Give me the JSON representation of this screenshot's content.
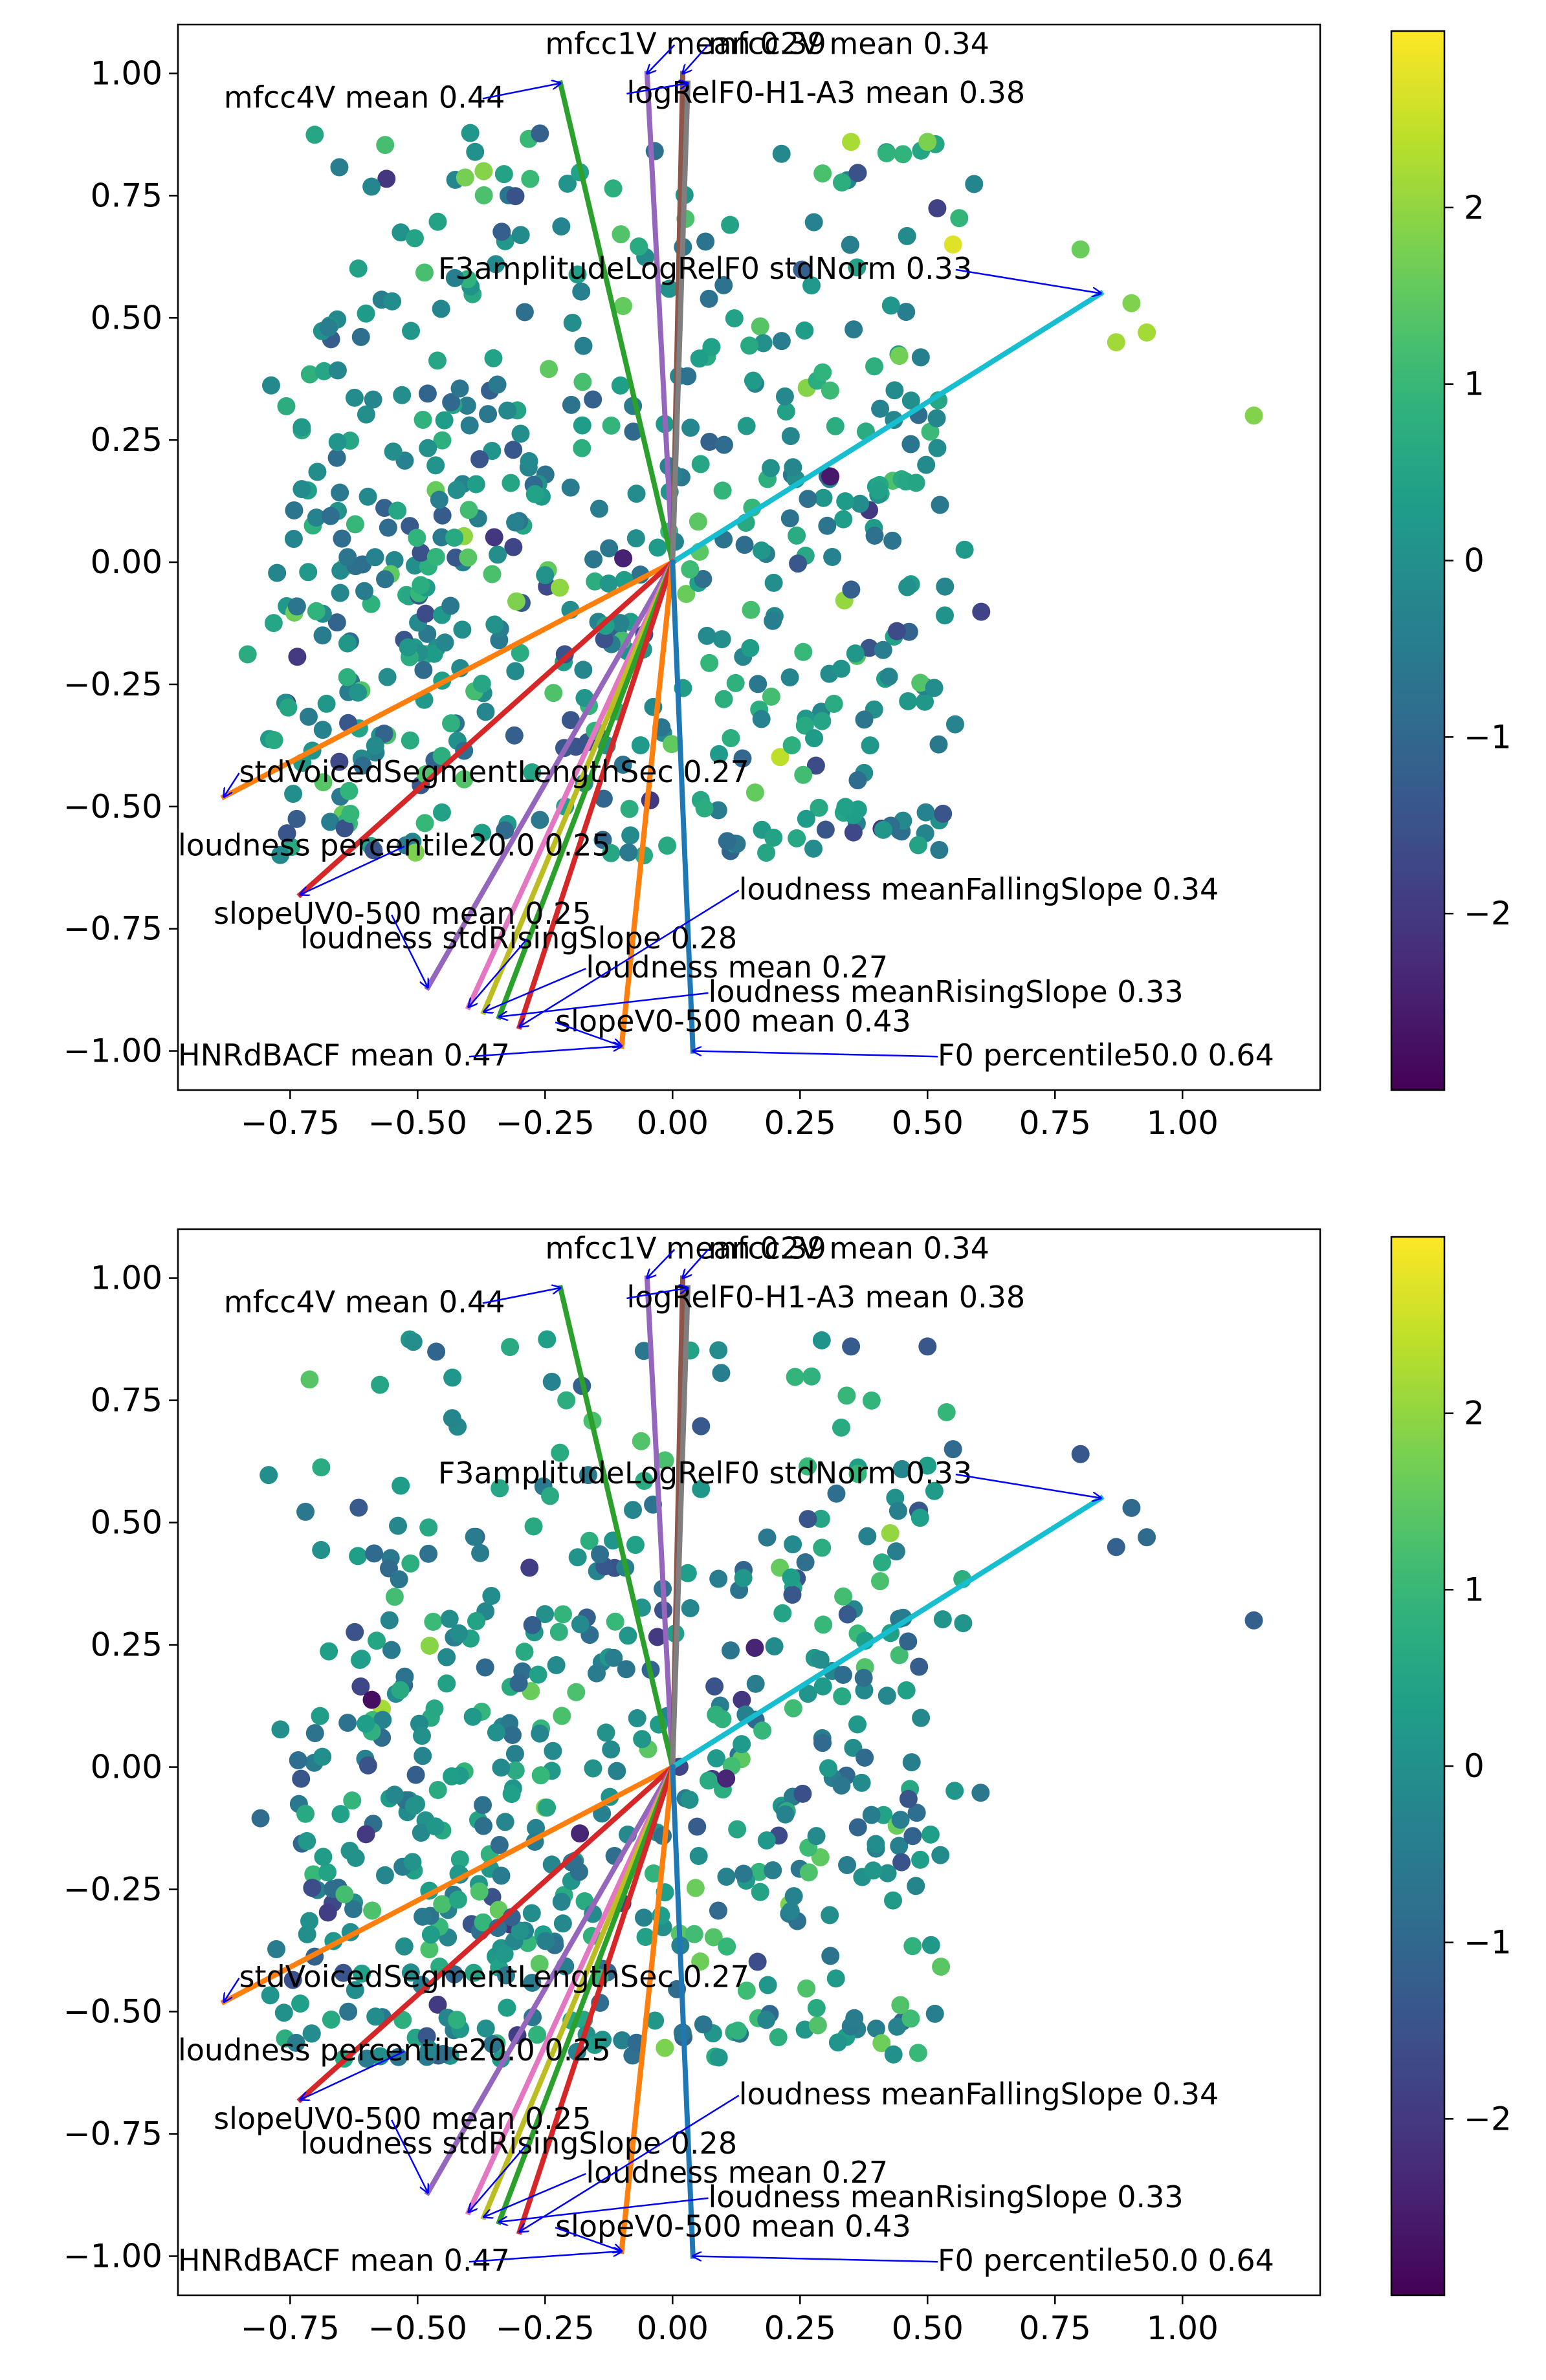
{
  "chart_data": [
    {
      "type": "scatter",
      "title": "",
      "xlabel": "",
      "ylabel": "",
      "xlim": [
        -0.97,
        1.27
      ],
      "ylim": [
        -1.08,
        1.1
      ],
      "xticks": [
        -0.75,
        -0.5,
        -0.25,
        0.0,
        0.25,
        0.5,
        0.75,
        1.0
      ],
      "xtick_labels": [
        "−0.75",
        "−0.50",
        "−0.25",
        "0.00",
        "0.25",
        "0.50",
        "0.75",
        "1.00"
      ],
      "yticks": [
        1.0,
        0.75,
        0.5,
        0.25,
        0.0,
        -0.25,
        -0.5,
        -0.75,
        -1.0
      ],
      "ytick_labels": [
        "1.00",
        "0.75",
        "0.50",
        "0.25",
        "0.00",
        "−0.25",
        "−0.50",
        "−0.75",
        "−1.00"
      ],
      "colorbar": {
        "range": [
          -3,
          3
        ],
        "ticks": [
          2,
          1,
          0,
          -1,
          -2
        ],
        "tick_labels": [
          "2",
          "1",
          "0",
          "−1",
          "−2"
        ],
        "colormap": "viridis"
      },
      "grid": false,
      "seed": 17,
      "loadings": [
        {
          "name": "mfcc1V mean 0.39",
          "x": -0.05,
          "y": 1.0,
          "color": "#9467bd",
          "lx": -0.25,
          "ly": 1.04
        },
        {
          "name": "mfcc2V mean 0.34",
          "x": 0.02,
          "y": 1.0,
          "color": "#8c564b",
          "lx": 0.07,
          "ly": 1.04
        },
        {
          "name": "mfcc4V mean 0.44",
          "x": -0.22,
          "y": 0.98,
          "color": "#2ca02c",
          "lx": -0.88,
          "ly": 0.93
        },
        {
          "name": "logRelF0-H1-A3 mean 0.38",
          "x": 0.03,
          "y": 0.98,
          "color": "#7f7f7f",
          "lx": -0.09,
          "ly": 0.94
        },
        {
          "name": "F3amplitudeLogRelF0 stdNorm 0.33",
          "x": 0.84,
          "y": 0.55,
          "color": "#17becf",
          "lx": -0.46,
          "ly": 0.58
        },
        {
          "name": "stdVoicedSegmentLengthSec 0.27",
          "x": -0.88,
          "y": -0.48,
          "color": "#ff7f0e",
          "lx": -0.85,
          "ly": -0.45
        },
        {
          "name": "loudness percentile20.0 0.25",
          "x": -0.73,
          "y": -0.68,
          "color": "#d62728",
          "lx": -0.97,
          "ly": -0.6
        },
        {
          "name": "slopeUV0-500 mean 0.25",
          "x": -0.48,
          "y": -0.87,
          "color": "#9467bd",
          "lx": -0.9,
          "ly": -0.74
        },
        {
          "name": "loudness stdRisingSlope 0.28",
          "x": -0.4,
          "y": -0.91,
          "color": "#e377c2",
          "lx": -0.73,
          "ly": -0.79
        },
        {
          "name": "loudness mean 0.27",
          "x": -0.37,
          "y": -0.92,
          "color": "#bcbd22",
          "lx": -0.17,
          "ly": -0.85
        },
        {
          "name": "loudness meanRisingSlope 0.33",
          "x": -0.34,
          "y": -0.93,
          "color": "#2ca02c",
          "lx": 0.07,
          "ly": -0.9
        },
        {
          "name": "loudness meanFallingSlope 0.34",
          "x": -0.3,
          "y": -0.95,
          "color": "#d62728",
          "lx": 0.13,
          "ly": -0.69
        },
        {
          "name": "slopeV0-500 mean 0.43",
          "x": -0.1,
          "y": -0.99,
          "color": "#ff7f0e",
          "lx": -0.23,
          "ly": -0.96
        },
        {
          "name": "HNRdBACF mean 0.47",
          "x": -0.1,
          "y": -0.99,
          "color": "#ff7f0e",
          "lx": -0.97,
          "ly": -1.03
        },
        {
          "name": "F0 percentile50.0 0.64",
          "x": 0.04,
          "y": -1.0,
          "color": "#1f77b4",
          "lx": 0.52,
          "ly": -1.03
        }
      ]
    },
    {
      "type": "scatter",
      "title": "",
      "xlabel": "",
      "ylabel": "",
      "xlim": [
        -0.97,
        1.27
      ],
      "ylim": [
        -1.08,
        1.1
      ],
      "xticks": [
        -0.75,
        -0.5,
        -0.25,
        0.0,
        0.25,
        0.5,
        0.75,
        1.0
      ],
      "xtick_labels": [
        "−0.75",
        "−0.50",
        "−0.25",
        "0.00",
        "0.25",
        "0.50",
        "0.75",
        "1.00"
      ],
      "yticks": [
        1.0,
        0.75,
        0.5,
        0.25,
        0.0,
        -0.25,
        -0.5,
        -0.75,
        -1.0
      ],
      "ytick_labels": [
        "1.00",
        "0.75",
        "0.50",
        "0.25",
        "0.00",
        "−0.25",
        "−0.50",
        "−0.75",
        "−1.00"
      ],
      "colorbar": {
        "range": [
          -3,
          3
        ],
        "ticks": [
          2,
          1,
          0,
          -1,
          -2
        ],
        "tick_labels": [
          "2",
          "1",
          "0",
          "−1",
          "−2"
        ],
        "colormap": "viridis"
      },
      "grid": false,
      "seed": 53,
      "loadings": [
        {
          "name": "mfcc1V mean 0.39",
          "x": -0.05,
          "y": 1.0,
          "color": "#9467bd",
          "lx": -0.25,
          "ly": 1.04
        },
        {
          "name": "mfcc2V mean 0.34",
          "x": 0.02,
          "y": 1.0,
          "color": "#8c564b",
          "lx": 0.07,
          "ly": 1.04
        },
        {
          "name": "mfcc4V mean 0.44",
          "x": -0.22,
          "y": 0.98,
          "color": "#2ca02c",
          "lx": -0.88,
          "ly": 0.93
        },
        {
          "name": "logRelF0-H1-A3 mean 0.38",
          "x": 0.03,
          "y": 0.98,
          "color": "#7f7f7f",
          "lx": -0.09,
          "ly": 0.94
        },
        {
          "name": "F3amplitudeLogRelF0 stdNorm 0.33",
          "x": 0.84,
          "y": 0.55,
          "color": "#17becf",
          "lx": -0.46,
          "ly": 0.58
        },
        {
          "name": "stdVoicedSegmentLengthSec 0.27",
          "x": -0.88,
          "y": -0.48,
          "color": "#ff7f0e",
          "lx": -0.85,
          "ly": -0.45
        },
        {
          "name": "loudness percentile20.0 0.25",
          "x": -0.73,
          "y": -0.68,
          "color": "#d62728",
          "lx": -0.97,
          "ly": -0.6
        },
        {
          "name": "slopeUV0-500 mean 0.25",
          "x": -0.48,
          "y": -0.87,
          "color": "#9467bd",
          "lx": -0.9,
          "ly": -0.74
        },
        {
          "name": "loudness stdRisingSlope 0.28",
          "x": -0.4,
          "y": -0.91,
          "color": "#e377c2",
          "lx": -0.73,
          "ly": -0.79
        },
        {
          "name": "loudness mean 0.27",
          "x": -0.37,
          "y": -0.92,
          "color": "#bcbd22",
          "lx": -0.17,
          "ly": -0.85
        },
        {
          "name": "loudness meanRisingSlope 0.33",
          "x": -0.34,
          "y": -0.93,
          "color": "#2ca02c",
          "lx": 0.07,
          "ly": -0.9
        },
        {
          "name": "loudness meanFallingSlope 0.34",
          "x": -0.3,
          "y": -0.95,
          "color": "#d62728",
          "lx": 0.13,
          "ly": -0.69
        },
        {
          "name": "slopeV0-500 mean 0.43",
          "x": -0.1,
          "y": -0.99,
          "color": "#ff7f0e",
          "lx": -0.23,
          "ly": -0.96
        },
        {
          "name": "HNRdBACF mean 0.47",
          "x": -0.1,
          "y": -0.99,
          "color": "#ff7f0e",
          "lx": -0.97,
          "ly": -1.03
        },
        {
          "name": "F0 percentile50.0 0.64",
          "x": 0.04,
          "y": -1.0,
          "color": "#1f77b4",
          "lx": 0.52,
          "ly": -1.03
        }
      ]
    }
  ]
}
